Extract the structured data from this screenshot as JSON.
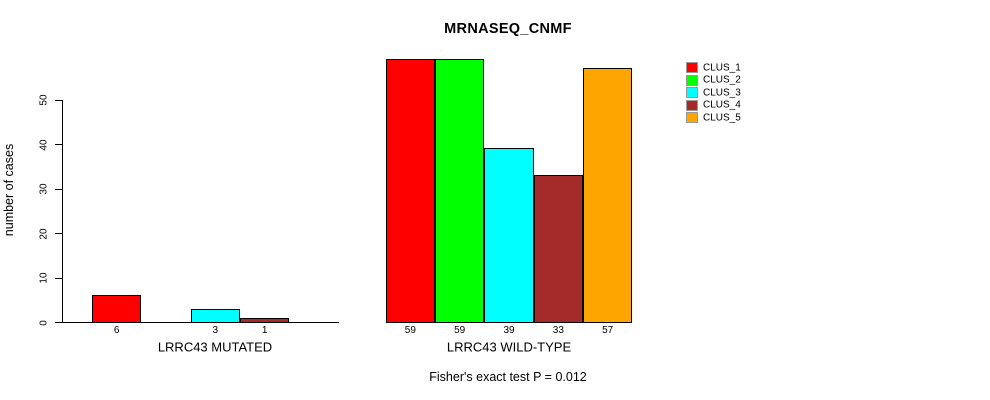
{
  "title": "MRNASEQ_CNMF",
  "chart_data": {
    "type": "bar",
    "title": "MRNASEQ_CNMF",
    "xlabel": "",
    "ylabel": "number of cases",
    "yticks": [
      0,
      10,
      20,
      30,
      40,
      50
    ],
    "ylim": [
      0,
      59
    ],
    "grid": false,
    "legend_position": "right",
    "series_names": [
      "CLUS_1",
      "CLUS_2",
      "CLUS_3",
      "CLUS_4",
      "CLUS_5"
    ],
    "series_colors": [
      "#FF0000",
      "#00FF00",
      "#00FFFF",
      "#A52A2A",
      "#FFA500"
    ],
    "groups": [
      {
        "label": "LRRC43 MUTATED",
        "values": [
          6,
          0,
          3,
          1,
          0
        ]
      },
      {
        "label": "LRRC43 WILD-TYPE",
        "values": [
          59,
          59,
          39,
          33,
          57
        ]
      }
    ],
    "bar_value_labels_shown_for_nonzero_only": true,
    "annotation": "Fisher's exact test P = 0.012"
  }
}
